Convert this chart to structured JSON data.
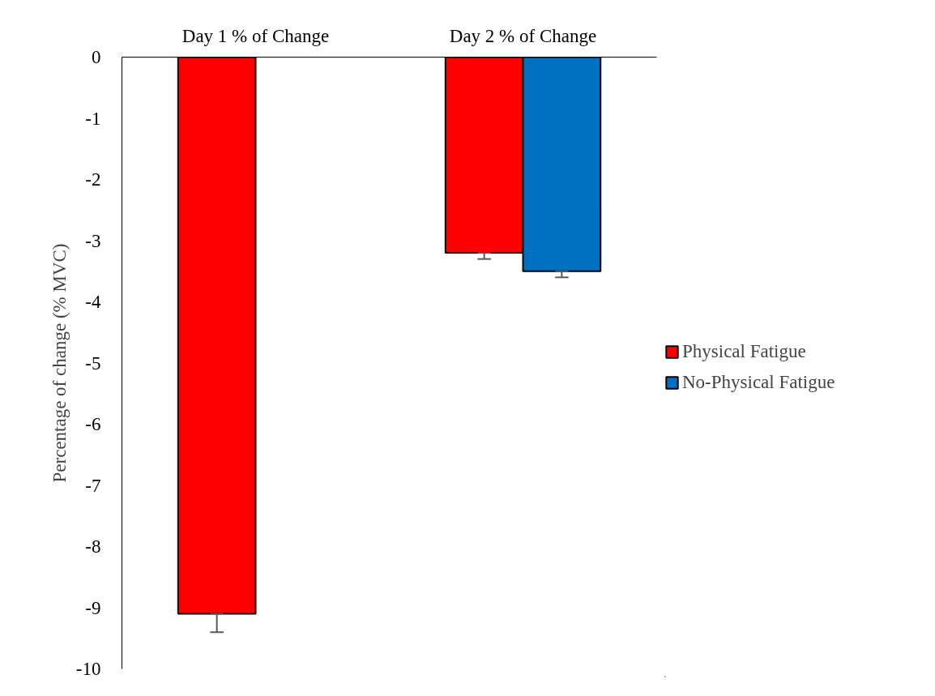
{
  "chart_data": {
    "type": "bar",
    "categories": [
      "Day 1 % of Change",
      "Day 2 % of Change"
    ],
    "ylabel": "Percentage of change (% MVC)",
    "ylim": [
      -10,
      0
    ],
    "yticks": [
      0,
      -1,
      -2,
      -3,
      -4,
      -5,
      -6,
      -7,
      -8,
      -9,
      -10
    ],
    "grid": false,
    "legend": "right",
    "series": [
      {
        "name": "Physical Fatigue",
        "color": "#ff0000",
        "values": [
          -9.1,
          -3.2
        ],
        "errors": [
          [
            -9.4,
            -9.1
          ],
          [
            -3.3,
            -3.2
          ]
        ]
      },
      {
        "name": "No-Physical Fatigue",
        "color": "#0070c0",
        "values": [
          null,
          -3.5
        ],
        "errors": [
          null,
          [
            -3.6,
            -3.5
          ]
        ]
      }
    ]
  }
}
